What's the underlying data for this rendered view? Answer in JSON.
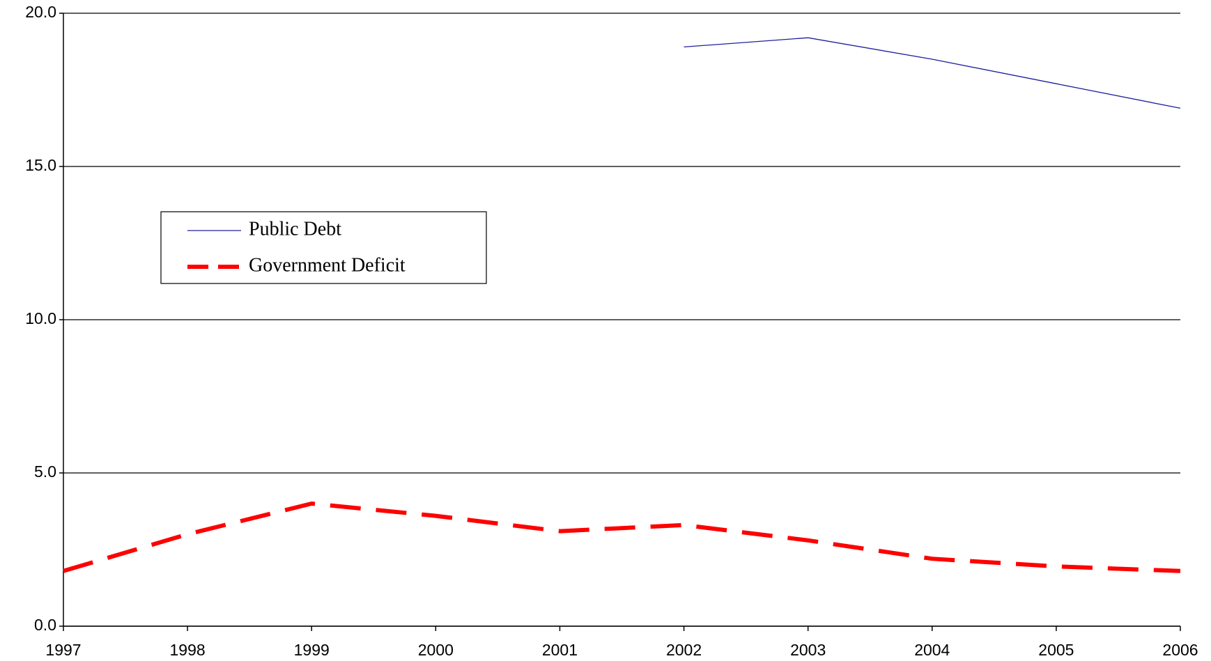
{
  "chart_data": {
    "type": "line",
    "x": [
      1997,
      1998,
      1999,
      2000,
      2001,
      2002,
      2003,
      2004,
      2005,
      2006
    ],
    "xlim": [
      1997,
      2006
    ],
    "xticks": [
      1997,
      1998,
      1999,
      2000,
      2001,
      2002,
      2003,
      2004,
      2005,
      2006
    ],
    "ylim": [
      0,
      20
    ],
    "yticks": [
      {
        "value": 0,
        "label": "0.0"
      },
      {
        "value": 5,
        "label": "5.0"
      },
      {
        "value": 10,
        "label": "10.0"
      },
      {
        "value": 15,
        "label": "15.0"
      },
      {
        "value": 20,
        "label": "20.0"
      }
    ],
    "grid": true,
    "legend": "upper-left",
    "series": [
      {
        "name": "Public Debt",
        "color": "#1f1f9e",
        "style": "solid",
        "values": [
          null,
          null,
          null,
          null,
          null,
          18.9,
          19.2,
          18.5,
          17.7,
          16.9
        ]
      },
      {
        "name": "Government Deficit",
        "color": "#ff0000",
        "style": "dashed",
        "values": [
          1.8,
          3.0,
          4.0,
          3.6,
          3.1,
          3.3,
          2.8,
          2.2,
          1.95,
          1.8
        ]
      }
    ]
  }
}
